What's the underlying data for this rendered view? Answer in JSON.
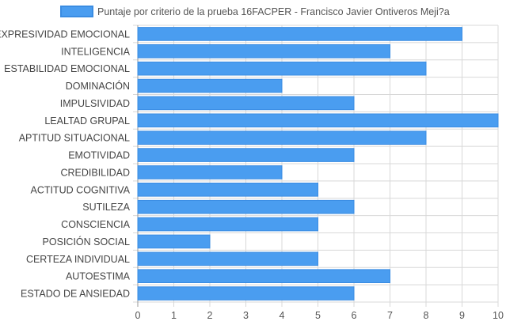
{
  "chart_data": {
    "type": "bar",
    "orientation": "horizontal",
    "categories": [
      "EXPRESIVIDAD EMOCIONAL",
      "INTELIGENCIA",
      "ESTABILIDAD EMOCIONAL",
      "DOMINACIÓN",
      "IMPULSIVIDAD",
      "LEALTAD GRUPAL",
      "APTITUD SITUACIONAL",
      "EMOTIVIDAD",
      "CREDIBILIDAD",
      "ACTITUD COGNITIVA",
      "SUTILEZA",
      "CONSCIENCIA",
      "POSICIÓN SOCIAL",
      "CERTEZA INDIVIDUAL",
      "AUTOESTIMA",
      "ESTADO DE ANSIEDAD"
    ],
    "series": [
      {
        "name": "Puntaje por criterio de la prueba 16FACPER - Francisco Javier Ontiveros Meji?a",
        "values": [
          9,
          7,
          8,
          4,
          6,
          10,
          8,
          6,
          4,
          5,
          6,
          5,
          2,
          5,
          7,
          6
        ]
      }
    ],
    "xlim": [
      0,
      10
    ],
    "x_ticks": [
      "0",
      "1",
      "2",
      "3",
      "4",
      "5",
      "6",
      "7",
      "8",
      "9",
      "10"
    ],
    "grid": true,
    "legend_position": "top",
    "colors": {
      "bar_fill": "#4a9df0",
      "bar_stroke": "#3a8ce2",
      "grid": "#d8d8d8",
      "axis": "#999999"
    }
  }
}
